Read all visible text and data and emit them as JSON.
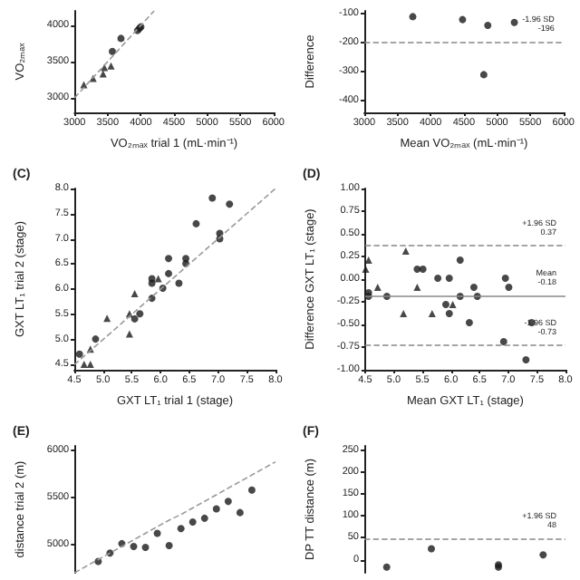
{
  "chart_data": [
    {
      "type": "scatter",
      "xlabel": "VO₂ₘₐₓ trial 1 (mL·min⁻¹)",
      "ylabel": "VO₂ₘₐₓ",
      "xlim": [
        3000,
        6000
      ],
      "xticks": [
        3000,
        3500,
        4000,
        4500,
        5000,
        5500,
        6000
      ],
      "ylim": [
        2800,
        4200
      ],
      "yticks": [
        3000,
        3500,
        4000
      ],
      "series": [
        {
          "color": "#1a1a1a",
          "marker": "triangle",
          "x": [
            3140,
            3280,
            3430,
            3450,
            3550
          ],
          "values": [
            3180,
            3270,
            3330,
            3420,
            3440
          ]
        },
        {
          "color": "#1a1a1a",
          "marker": "circle",
          "x": [
            3570,
            3700,
            3950,
            3980,
            4000
          ],
          "values": [
            3640,
            3820,
            3930,
            3960,
            3980
          ]
        },
        {
          "type": "line",
          "color": "#999999",
          "line_style": "dashed",
          "x": [
            3000,
            4200
          ],
          "values": [
            3000,
            4200
          ]
        }
      ]
    },
    {
      "type": "scatter",
      "xlabel": "Mean VO₂ₘₐₓ (mL·min⁻¹)",
      "ylabel": "Difference",
      "xlim": [
        3000,
        6000
      ],
      "xticks": [
        3000,
        3500,
        4000,
        4500,
        5000,
        5500,
        6000
      ],
      "ylim": [
        -440,
        -90
      ],
      "yticks": [
        -400,
        -300,
        -200,
        -100
      ],
      "series": [
        {
          "color": "#1a1a1a",
          "marker": "circle",
          "x": [
            3730,
            4480,
            4860,
            4800,
            5260
          ],
          "values": [
            -110,
            -120,
            -140,
            -310,
            -130
          ]
        }
      ],
      "ref_lines": [
        {
          "axis": "y",
          "value": -196,
          "label": "-1.96 SD\n-196",
          "color": "#888888",
          "line_style": "dashed"
        }
      ]
    },
    {
      "type": "scatter",
      "title": "(C)",
      "xlabel": "GXT LT₁ trial 1 (stage)",
      "ylabel": "GXT LT₁ trial 2 (stage)",
      "xlim": [
        4.5,
        8.0
      ],
      "xticks": [
        4.5,
        {
          "value": 5,
          "label": "5.0"
        },
        5.5,
        {
          "value": 6,
          "label": "6.0"
        },
        6.5,
        {
          "value": 7,
          "label": "7.0"
        },
        7.5,
        {
          "value": 8,
          "label": "8.0"
        }
      ],
      "ylim": [
        4.4,
        8.0
      ],
      "yticks": [
        4.5,
        {
          "value": 5,
          "label": "5.0"
        },
        5.5,
        {
          "value": 6,
          "label": "6.0"
        },
        6.5,
        {
          "value": 7,
          "label": "7.0"
        },
        7.5,
        {
          "value": 8,
          "label": "8.0"
        }
      ],
      "series": [
        {
          "color": "#1a1a1a",
          "marker": "triangle",
          "x": [
            4.67,
            4.78,
            4.78,
            5.07,
            5.46,
            5.46,
            5.55,
            5.96
          ],
          "values": [
            4.51,
            4.51,
            4.81,
            5.42,
            5.11,
            5.51,
            5.91,
            6.21
          ]
        },
        {
          "color": "#1a1a1a",
          "marker": "circle",
          "x": [
            4.59,
            4.87,
            5.55,
            5.64,
            5.85,
            5.85,
            5.85,
            6.04,
            6.14,
            6.14,
            6.32,
            6.44,
            6.44,
            6.62,
            7.03,
            7.03,
            6.9,
            7.2
          ],
          "values": [
            4.71,
            5.01,
            5.41,
            5.51,
            5.82,
            6.12,
            6.21,
            6.02,
            6.31,
            6.61,
            6.12,
            6.51,
            6.61,
            7.3,
            7.11,
            7.0,
            7.81,
            7.69
          ]
        },
        {
          "type": "line",
          "color": "#999999",
          "line_style": "dashed",
          "x": [
            4.5,
            8.0
          ],
          "values": [
            4.5,
            8.0
          ]
        }
      ]
    },
    {
      "type": "scatter",
      "title": "(D)",
      "xlabel": "Mean GXT LT₁ (stage)",
      "ylabel": "Difference GXT LT₁ (stage)",
      "xlim": [
        4.5,
        8.0
      ],
      "xticks": [
        4.5,
        {
          "value": 5,
          "label": "5.0"
        },
        5.5,
        {
          "value": 6,
          "label": "6.0"
        },
        6.5,
        {
          "value": 7,
          "label": "7.0"
        },
        7.5,
        {
          "value": 8,
          "label": "8.0"
        }
      ],
      "ylim": [
        -1,
        1
      ],
      "yticks": [
        {
          "value": -1,
          "label": "-1.00"
        },
        {
          "value": -0.75,
          "label": "-0.75"
        },
        {
          "value": -0.5,
          "label": "-0.50"
        },
        {
          "value": -0.25,
          "label": "-0.25"
        },
        {
          "value": 0,
          "label": "0.00"
        },
        {
          "value": 0.25,
          "label": "0.25"
        },
        {
          "value": 0.5,
          "label": "0.50"
        },
        {
          "value": 0.75,
          "label": "0.75"
        },
        {
          "value": 1,
          "label": "1.00"
        }
      ],
      "series": [
        {
          "color": "#1a1a1a",
          "marker": "triangle",
          "x": [
            4.51,
            4.56,
            4.72,
            5.17,
            5.21,
            5.41,
            5.67,
            6.03
          ],
          "values": [
            0.11,
            0.21,
            -0.09,
            -0.38,
            0.31,
            -0.09,
            -0.38,
            -0.28
          ]
        },
        {
          "color": "#1a1a1a",
          "marker": "circle",
          "x": [
            4.56,
            4.56,
            4.88,
            5.41,
            5.51,
            5.77,
            5.91,
            5.97,
            5.97,
            6.16,
            6.16,
            6.32,
            6.4,
            6.46,
            6.92,
            6.95,
            7.01,
            7.31,
            7.41
          ],
          "values": [
            -0.15,
            -0.19,
            -0.19,
            0.11,
            0.11,
            0.01,
            -0.28,
            0.01,
            -0.38,
            0.21,
            -0.19,
            -0.48,
            -0.09,
            -0.19,
            -0.69,
            0.01,
            -0.09,
            -0.89,
            -0.48
          ]
        }
      ],
      "ref_lines": [
        {
          "axis": "y",
          "value": 0.37,
          "label": "+1.96 SD\n0.37",
          "color": "#888888",
          "line_style": "dashed"
        },
        {
          "axis": "y",
          "value": -0.18,
          "label": "Mean\n-0.18",
          "color": "#888888",
          "line_style": "solid"
        },
        {
          "axis": "y",
          "value": -0.73,
          "label": "-1.96 SD\n-0.73",
          "color": "#888888",
          "line_style": "dashed"
        }
      ]
    },
    {
      "type": "scatter",
      "title": "(E)",
      "ylabel": "distance trial 2 (m)",
      "tick_labels": "y",
      "categories": [
        null,
        null,
        null,
        null,
        null,
        null,
        null,
        null,
        null,
        null,
        null,
        null,
        null,
        null,
        null,
        null,
        null,
        null
      ],
      "ylim": [
        4700,
        6050
      ],
      "yticks": [
        5000,
        5500,
        6000
      ],
      "series": [
        {
          "color": "#1a1a1a",
          "marker": "circle",
          "values": [
            null,
            null,
            4820,
            4910,
            5010,
            4980,
            4970,
            5120,
            4990,
            5170,
            5240,
            5280,
            5380,
            5460,
            5340,
            5580,
            null,
            null
          ]
        },
        {
          "type": "line",
          "color": "#999999",
          "line_style": "dashed",
          "values": [
            4700,
            4770,
            4840,
            4910,
            4980,
            5050,
            5120,
            5190,
            5260,
            5320,
            5390,
            5460,
            5530,
            5600,
            5670,
            5740,
            5810,
            5880
          ]
        }
      ]
    },
    {
      "type": "scatter",
      "title": "(F)",
      "ylabel": "DP TT distance (m)",
      "tick_labels": "y",
      "categories": [
        null,
        null,
        null,
        null,
        null,
        null,
        null,
        null,
        null,
        null
      ],
      "ylim": [
        -30,
        260
      ],
      "yticks": [
        0,
        50,
        100,
        150,
        200,
        250
      ],
      "series": [
        {
          "color": "#1a1a1a",
          "marker": "circle",
          "values": [
            null,
            -17,
            null,
            25,
            null,
            null,
            -12,
            null,
            11,
            null
          ]
        },
        {
          "color": "#1a1a1a",
          "marker": "circle",
          "values": [
            null,
            null,
            null,
            null,
            null,
            null,
            -17,
            null,
            null,
            null
          ]
        }
      ],
      "ref_lines": [
        {
          "axis": "y",
          "value": 48,
          "label": "+1.96 SD\n48",
          "color": "#888888",
          "line_style": "dashed"
        }
      ]
    }
  ]
}
